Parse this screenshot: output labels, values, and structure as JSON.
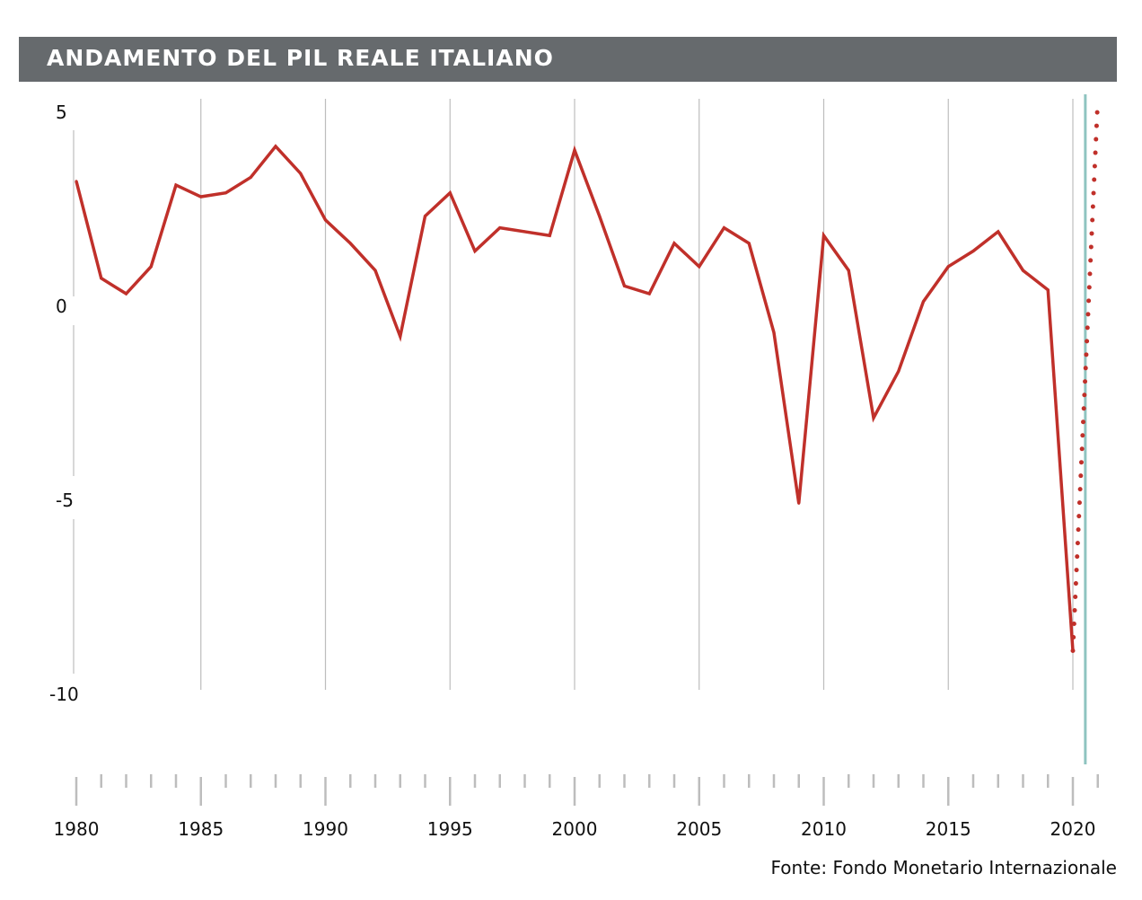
{
  "chart_data": {
    "type": "line",
    "title": "ANDAMENTO DEL PIL REALE ITALIANO",
    "source": "Fonte: Fondo Monetario Internazionale",
    "xlabel": "",
    "ylabel": "",
    "xlim": [
      1980,
      2021
    ],
    "ylim": [
      -12,
      5.5
    ],
    "y_ticks": [
      5,
      0,
      -5,
      -10
    ],
    "x_ticks": [
      1980,
      1985,
      1990,
      1995,
      2000,
      2005,
      2010,
      2015,
      2020
    ],
    "grid": "vertical every 5 years",
    "colors": {
      "series": "#c0302a",
      "marker": "#8fc4c0",
      "grid": "#bdbdbd",
      "title_bg": "#666a6d"
    },
    "x": [
      1980,
      1981,
      1982,
      1983,
      1984,
      1985,
      1986,
      1987,
      1988,
      1989,
      1990,
      1991,
      1992,
      1993,
      1994,
      1995,
      1996,
      1997,
      1998,
      1999,
      2000,
      2001,
      2002,
      2003,
      2004,
      2005,
      2006,
      2007,
      2008,
      2009,
      2010,
      2011,
      2012,
      2013,
      2014,
      2015,
      2016,
      2017,
      2018,
      2019,
      2020
    ],
    "values": [
      3.2,
      0.7,
      0.3,
      1.0,
      3.1,
      2.8,
      2.9,
      3.3,
      4.1,
      3.4,
      2.2,
      1.6,
      0.9,
      -0.8,
      2.3,
      2.9,
      1.4,
      2.0,
      1.9,
      1.8,
      4.0,
      2.3,
      0.5,
      0.3,
      1.6,
      1.0,
      2.0,
      1.6,
      -0.7,
      -5.1,
      1.8,
      0.9,
      -2.9,
      -1.7,
      0.1,
      1.0,
      1.4,
      1.9,
      0.9,
      0.4,
      -8.9
    ],
    "projection": {
      "style": "dotted",
      "x": [
        2020,
        2021
      ],
      "values": [
        -8.9,
        5.3
      ]
    },
    "marker_line_x": 2020.5
  }
}
